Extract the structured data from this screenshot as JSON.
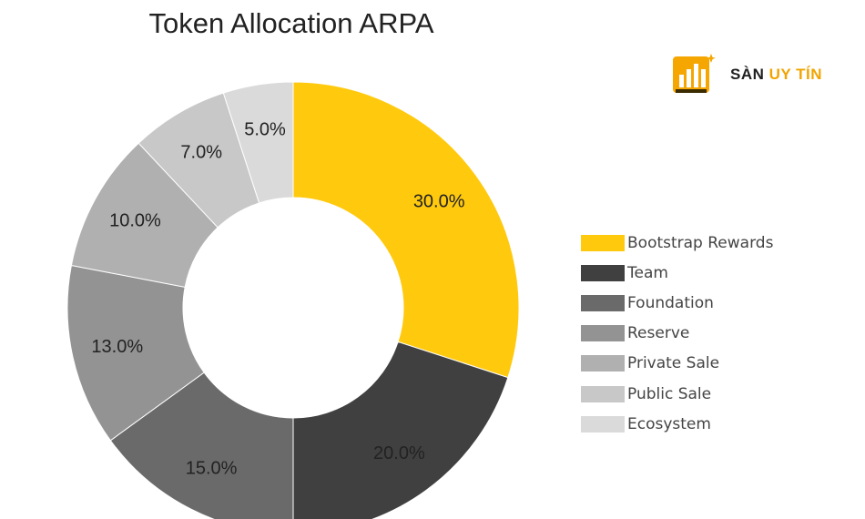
{
  "title": "Token Allocation ARPA",
  "brand": {
    "word1": "SÀN",
    "word2": "UY TÍN",
    "accent_color": "#f5a600",
    "dark_color": "#1f1f1f"
  },
  "chart_data": {
    "type": "pie",
    "title": "Token Allocation ARPA",
    "donut": true,
    "legend_position": "right",
    "categories": [
      "Bootstrap Rewards",
      "Team",
      "Foundation",
      "Reserve",
      "Private Sale",
      "Public Sale",
      "Ecosystem"
    ],
    "values": [
      30.0,
      20.0,
      15.0,
      13.0,
      10.0,
      7.0,
      5.0
    ],
    "labels": [
      "30.0%",
      "20.0%",
      "15.0%",
      "13.0%",
      "10.0%",
      "7.0%",
      "5.0%"
    ],
    "colors": [
      "#ffc90e",
      "#404040",
      "#6a6a6a",
      "#939393",
      "#b0b0b0",
      "#c8c8c8",
      "#dadada"
    ]
  }
}
